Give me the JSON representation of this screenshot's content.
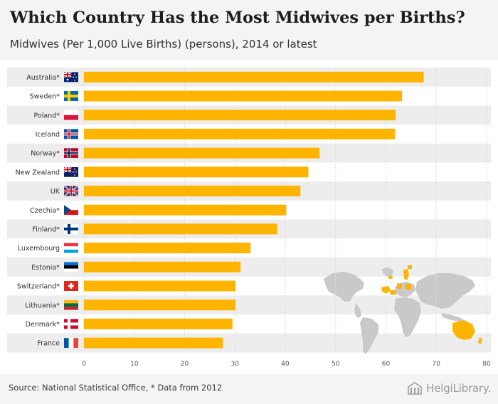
{
  "header": {
    "title": "Which Country Has the Most Midwives per Births?",
    "subtitle": "Midwives (Per 1,000 Live Births) (persons), 2014 or latest"
  },
  "footer": {
    "source": "Source: National Statistical Office, * Data from 2012",
    "brand": "HelgiLibrary."
  },
  "colors": {
    "bar": "#FFB400",
    "band": "#EDEDED",
    "grid": "#DDDDDD",
    "map_land": "#C9C9C9",
    "map_highlight": "#FFB400"
  },
  "chart_data": {
    "type": "bar",
    "orientation": "horizontal",
    "title": "Which Country Has the Most Midwives per Births?",
    "subtitle": "Midwives (Per 1,000 Live Births) (persons), 2014 or latest",
    "xlabel": "",
    "ylabel": "",
    "xlim": [
      0,
      80
    ],
    "xticks": [
      0,
      10,
      20,
      30,
      40,
      50,
      60,
      70,
      80
    ],
    "grid": true,
    "categories": [
      "Australia*",
      "Sweden*",
      "Poland*",
      "Iceland",
      "Norway*",
      "New Zealand",
      "UK",
      "Czechia*",
      "Finland*",
      "Luxembourg",
      "Estonia*",
      "Switzerland*",
      "Lithuania*",
      "Denmark*",
      "France"
    ],
    "flags": [
      "au",
      "se",
      "pl",
      "is",
      "no",
      "nz",
      "gb",
      "cz",
      "fi",
      "lu",
      "ee",
      "ch",
      "lt",
      "dk",
      "fr"
    ],
    "values": [
      67.5,
      63.2,
      61.9,
      61.8,
      46.8,
      44.6,
      43.0,
      40.2,
      38.4,
      33.1,
      31.1,
      30.1,
      30.1,
      29.5,
      27.6
    ]
  }
}
